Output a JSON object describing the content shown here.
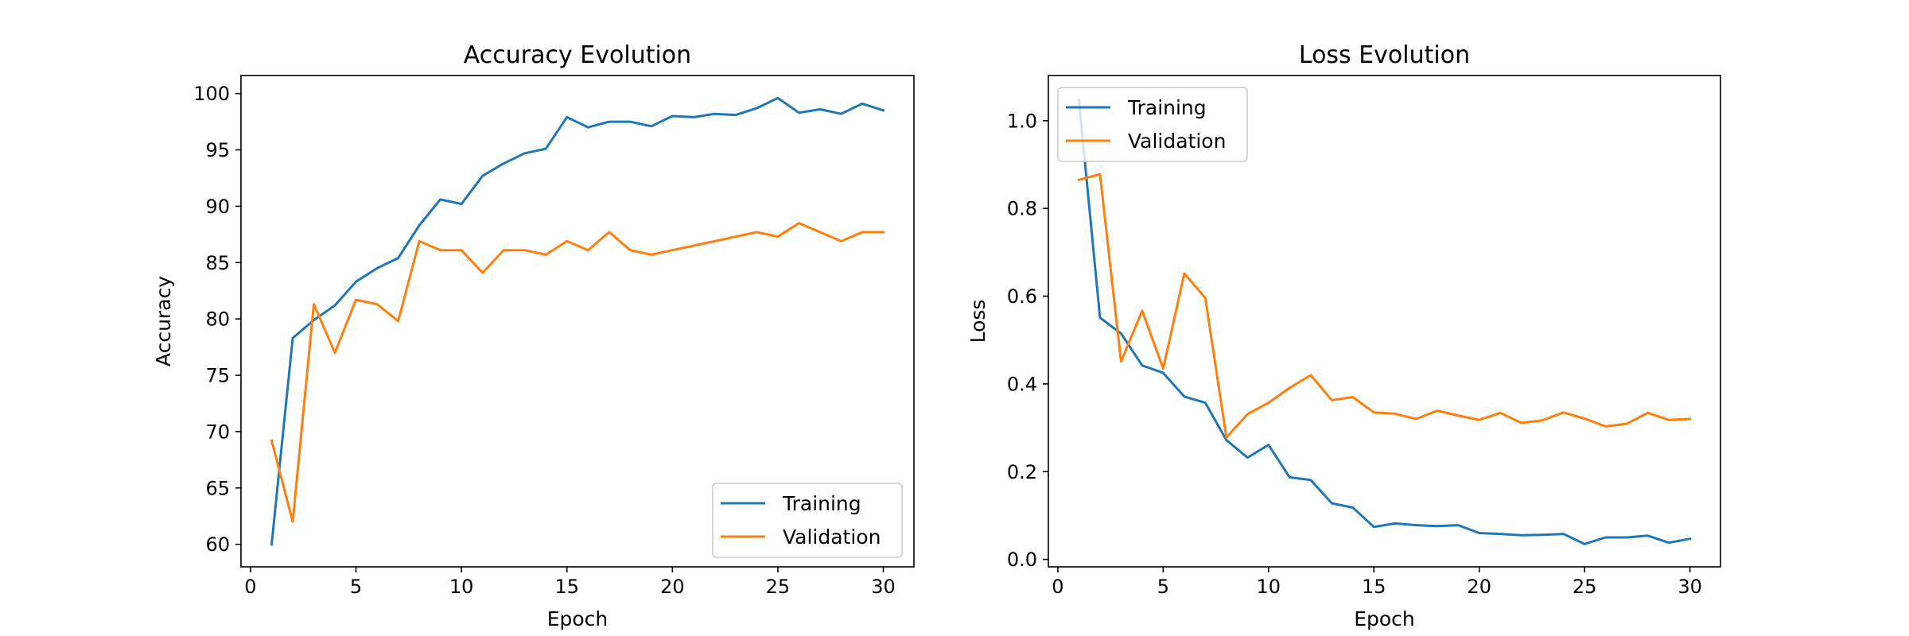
{
  "chart_data": [
    {
      "type": "line",
      "title": "Accuracy Evolution",
      "xlabel": "Epoch",
      "ylabel": "Accuracy",
      "xlim": [
        -0.45,
        31.45
      ],
      "ylim": [
        58.0,
        101.6
      ],
      "xticks": [
        0,
        5,
        10,
        15,
        20,
        25,
        30
      ],
      "yticks": [
        60,
        65,
        70,
        75,
        80,
        85,
        90,
        95,
        100
      ],
      "grid": false,
      "legend_position": "lower right",
      "x": [
        1,
        2,
        3,
        4,
        5,
        6,
        7,
        8,
        9,
        10,
        11,
        12,
        13,
        14,
        15,
        16,
        17,
        18,
        19,
        20,
        21,
        22,
        23,
        24,
        25,
        26,
        27,
        28,
        29,
        30
      ],
      "series": [
        {
          "name": "Training",
          "color": "#1f77b4",
          "values": [
            60.0,
            78.3,
            79.9,
            81.2,
            83.3,
            84.5,
            85.4,
            88.3,
            90.6,
            90.2,
            92.7,
            93.8,
            94.7,
            95.1,
            97.9,
            97.0,
            97.5,
            97.5,
            97.1,
            98.0,
            97.9,
            98.2,
            98.1,
            98.7,
            99.6,
            98.3,
            98.6,
            98.2,
            99.1,
            98.5
          ]
        },
        {
          "name": "Validation",
          "color": "#ff7f0e",
          "values": [
            69.2,
            62.0,
            81.3,
            77.0,
            81.7,
            81.3,
            79.8,
            86.9,
            86.1,
            86.1,
            84.1,
            86.1,
            86.1,
            85.7,
            86.9,
            86.1,
            87.7,
            86.1,
            85.7,
            86.1,
            86.5,
            86.9,
            87.3,
            87.7,
            87.3,
            88.5,
            87.7,
            86.9,
            87.7,
            87.7
          ]
        }
      ]
    },
    {
      "type": "line",
      "title": "Loss Evolution",
      "xlabel": "Epoch",
      "ylabel": "Loss",
      "xlim": [
        -0.45,
        31.45
      ],
      "ylim": [
        -0.017,
        1.103
      ],
      "xticks": [
        0,
        5,
        10,
        15,
        20,
        25,
        30
      ],
      "yticks": [
        0.0,
        0.2,
        0.4,
        0.6,
        0.8,
        1.0
      ],
      "ytick_labels": [
        "0.0",
        "0.2",
        "0.4",
        "0.6",
        "0.8",
        "1.0"
      ],
      "grid": false,
      "legend_position": "upper left",
      "x": [
        1,
        2,
        3,
        4,
        5,
        6,
        7,
        8,
        9,
        10,
        11,
        12,
        13,
        14,
        15,
        16,
        17,
        18,
        19,
        20,
        21,
        22,
        23,
        24,
        25,
        26,
        27,
        28,
        29,
        30
      ],
      "series": [
        {
          "name": "Training",
          "color": "#1f77b4",
          "values": [
            1.048,
            0.551,
            0.515,
            0.442,
            0.425,
            0.371,
            0.357,
            0.272,
            0.232,
            0.261,
            0.187,
            0.181,
            0.128,
            0.118,
            0.074,
            0.082,
            0.078,
            0.076,
            0.078,
            0.06,
            0.058,
            0.055,
            0.056,
            0.058,
            0.035,
            0.05,
            0.05,
            0.054,
            0.038,
            0.047
          ]
        },
        {
          "name": "Validation",
          "color": "#ff7f0e",
          "values": [
            0.865,
            0.878,
            0.451,
            0.567,
            0.435,
            0.652,
            0.596,
            0.278,
            0.331,
            0.357,
            0.391,
            0.42,
            0.363,
            0.37,
            0.335,
            0.332,
            0.32,
            0.339,
            0.328,
            0.318,
            0.334,
            0.311,
            0.317,
            0.335,
            0.321,
            0.303,
            0.309,
            0.334,
            0.318,
            0.32
          ]
        }
      ]
    }
  ]
}
